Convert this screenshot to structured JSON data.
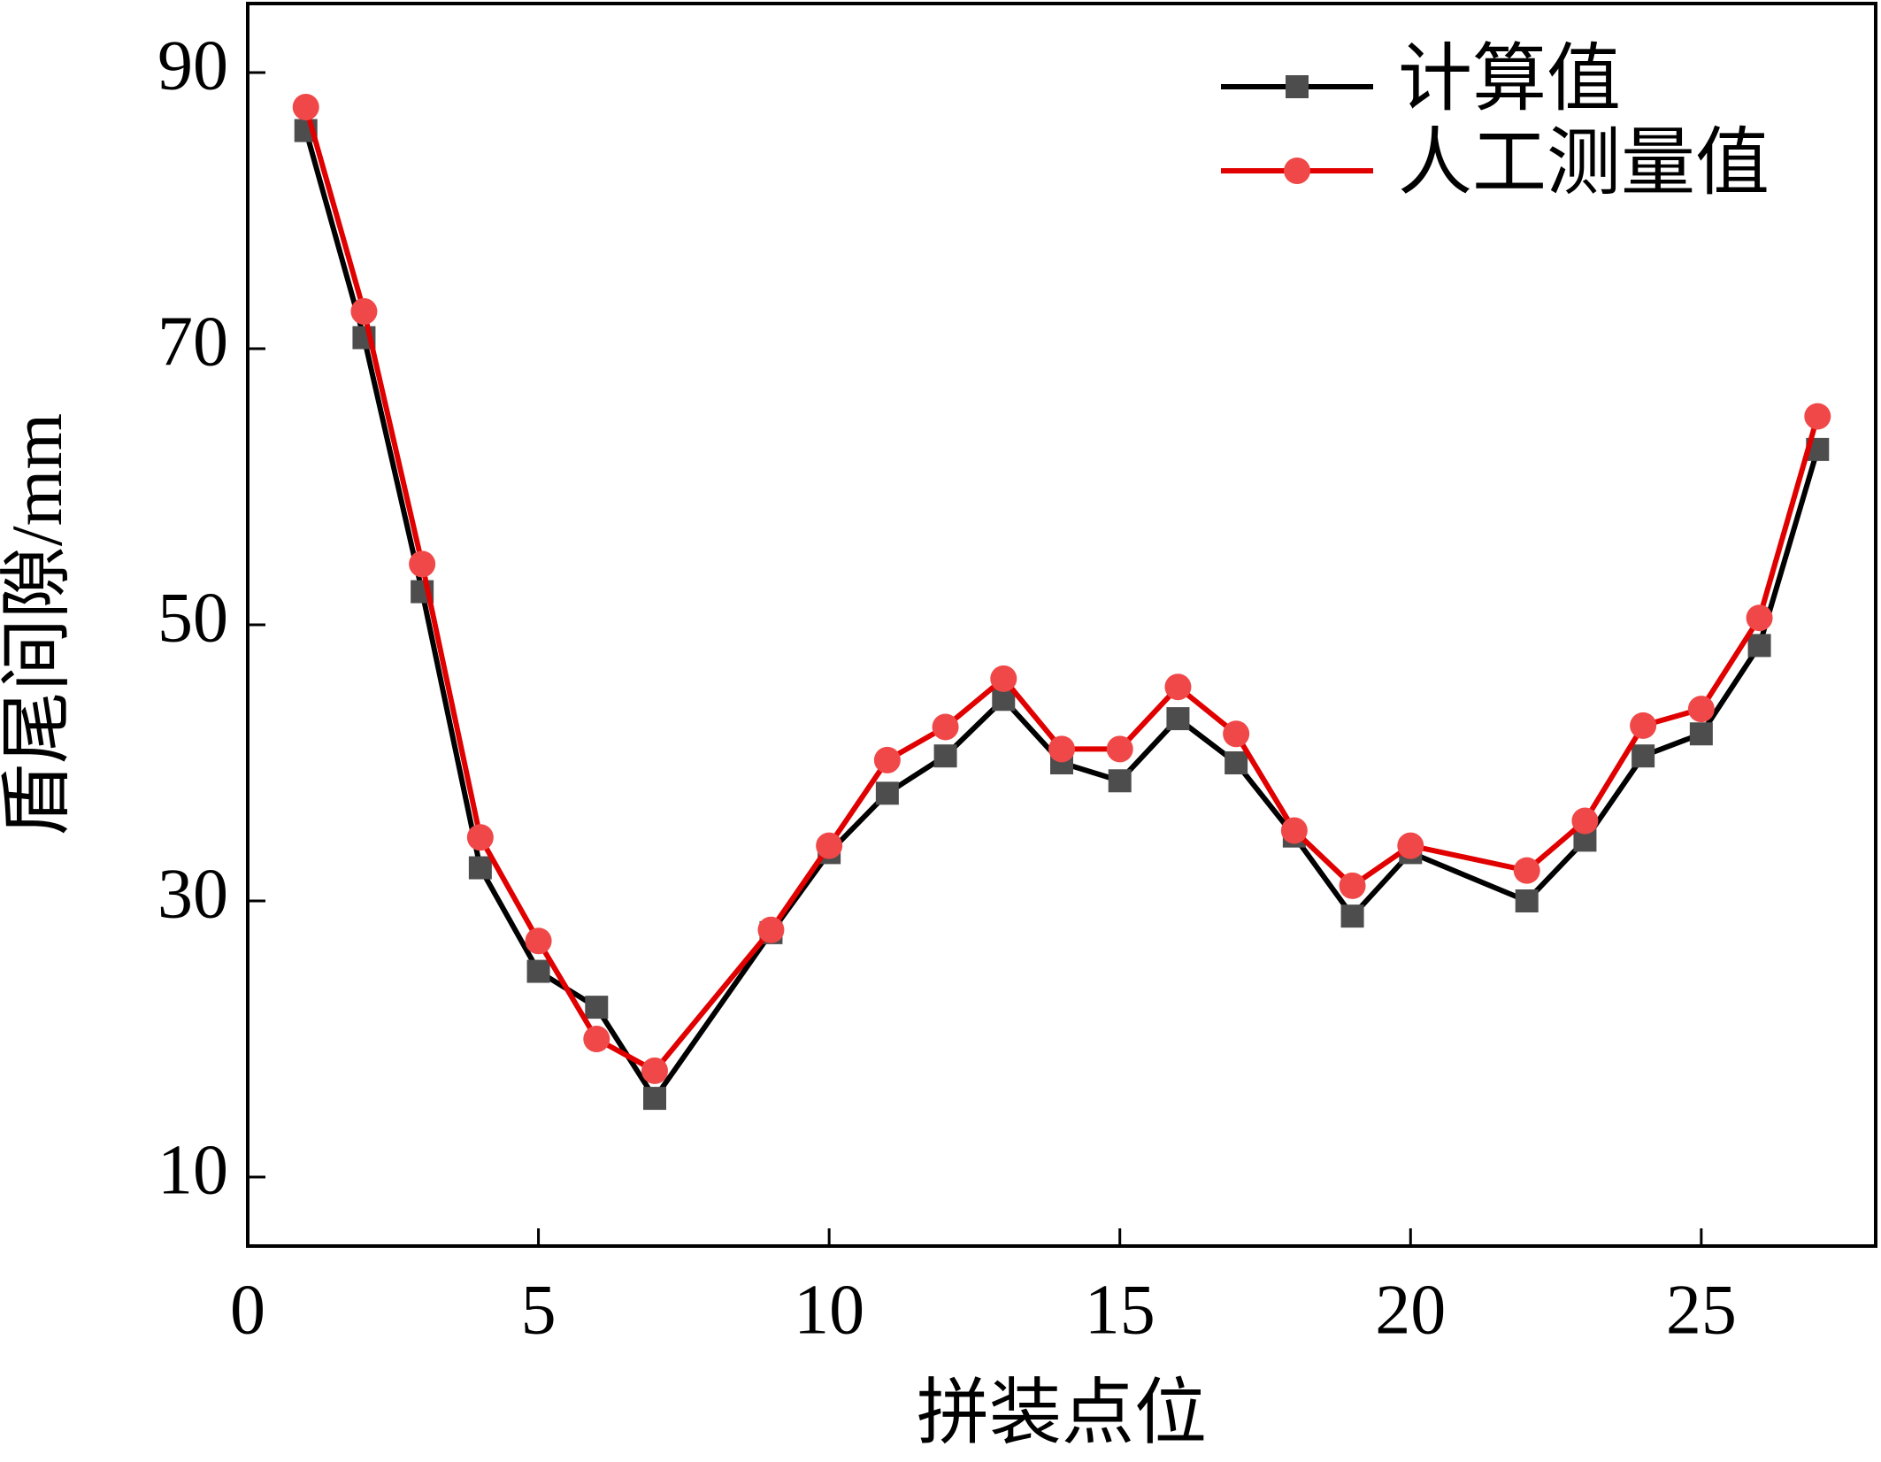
{
  "chart_data": {
    "type": "line",
    "x_label": "拼装点位",
    "y_label": "盾尾间隙/mm",
    "x": [
      1,
      2,
      3,
      4,
      5,
      6,
      7,
      9,
      10,
      11,
      12,
      13,
      14,
      15,
      16,
      17,
      18,
      19,
      20,
      22,
      23,
      24,
      25,
      26,
      27
    ],
    "series": [
      {
        "name": "计算值",
        "color": "#000000",
        "marker_color": "#4d4d4d",
        "marker": "square",
        "values": [
          85.8,
          70.8,
          52.4,
          32.4,
          24.9,
          22.3,
          15.7,
          27.7,
          33.5,
          37.8,
          40.5,
          44.6,
          40.0,
          38.7,
          43.2,
          40.0,
          34.7,
          28.9,
          33.5,
          30.0,
          34.4,
          40.5,
          42.1,
          48.5,
          62.7
        ]
      },
      {
        "name": "人工测量值",
        "color": "#e00000",
        "marker_color": "#f04848",
        "marker": "circle",
        "values": [
          87.5,
          72.7,
          54.4,
          34.6,
          27.1,
          20.0,
          17.7,
          27.9,
          34.0,
          40.2,
          42.6,
          46.1,
          41.0,
          41.0,
          45.5,
          42.1,
          35.1,
          31.1,
          34.0,
          32.2,
          35.8,
          42.7,
          43.9,
          50.5,
          65.1
        ]
      }
    ],
    "xlim": [
      0,
      28
    ],
    "xticks": [
      0,
      5,
      10,
      15,
      20,
      25
    ],
    "ylim": [
      5,
      95
    ],
    "yticks": [
      10,
      30,
      50,
      70,
      90
    ],
    "grid": false,
    "legend": "upper right"
  }
}
